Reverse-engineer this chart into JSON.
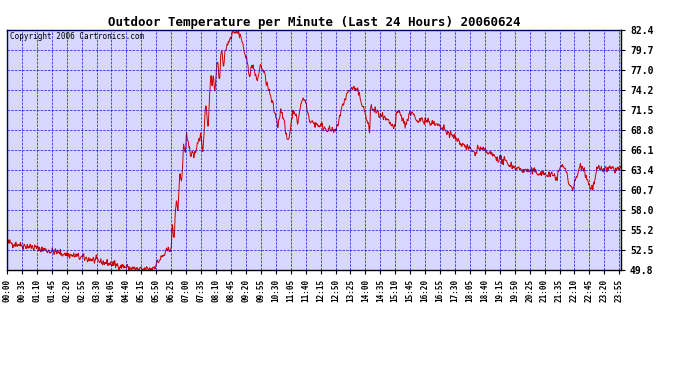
{
  "title": "Outdoor Temperature per Minute (Last 24 Hours) 20060624",
  "copyright_text": "Copyright 2006 Cartronics.com",
  "line_color": "#cc0000",
  "bg_color": "#ffffff",
  "plot_bg_color": "#d8d8ff",
  "grid_color": "#0000cc",
  "title_color": "#000000",
  "border_color": "#000000",
  "yticks": [
    49.8,
    52.5,
    55.2,
    58.0,
    60.7,
    63.4,
    66.1,
    68.8,
    71.5,
    74.2,
    77.0,
    79.7,
    82.4
  ],
  "ylim": [
    49.8,
    82.4
  ],
  "xtick_step_minutes": 35,
  "num_minutes": 1440,
  "figsize": [
    6.9,
    3.75
  ],
  "dpi": 100
}
